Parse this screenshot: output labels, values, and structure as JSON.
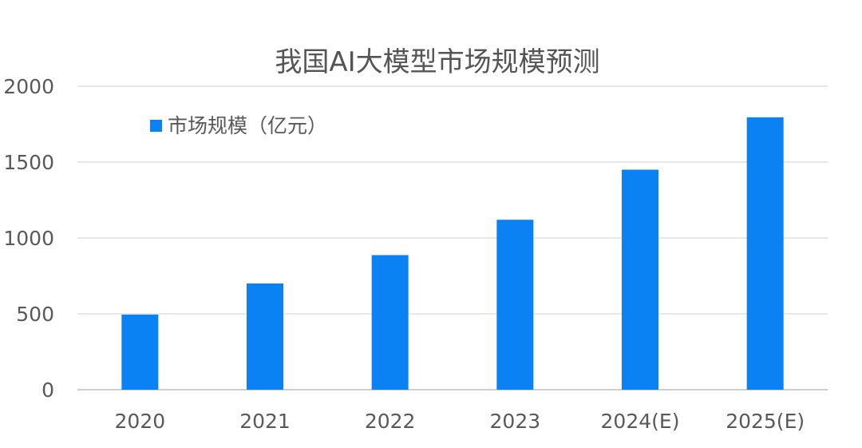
{
  "chart_data": {
    "type": "bar",
    "title": "我国AI大模型市场规模预测",
    "xlabel": "",
    "ylabel": "",
    "categories": [
      "2020",
      "2021",
      "2022",
      "2023",
      "2024(E)",
      "2025(E)"
    ],
    "series": [
      {
        "name": "市场规模（亿元）",
        "values": [
          495,
          700,
          887,
          1120,
          1450,
          1795
        ],
        "color": "#0a82f4"
      }
    ],
    "ylim": [
      0,
      2000
    ],
    "yticks": [
      0,
      500,
      1000,
      1500,
      2000
    ],
    "grid": true,
    "legend_position": "top-left"
  }
}
